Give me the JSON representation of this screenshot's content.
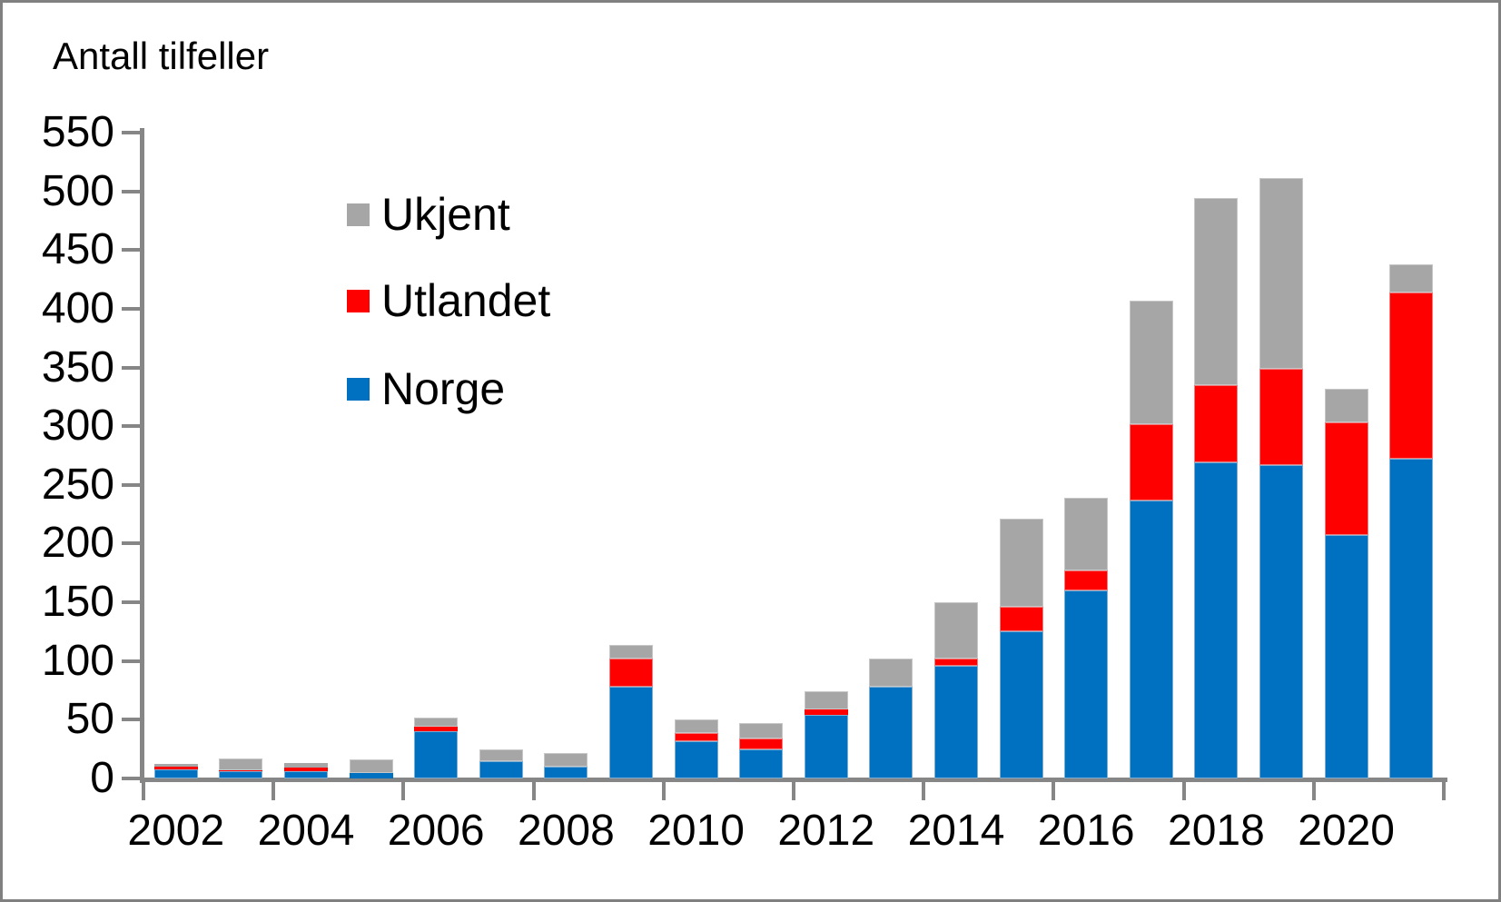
{
  "window": {
    "background": "#ffffff",
    "frame_border_color": "#808080"
  },
  "title": "Antall tilfeller",
  "legend": {
    "position": "upper-left-inside",
    "items": [
      {
        "label": "Ukjent",
        "color": "#a6a6a6"
      },
      {
        "label": "Utlandet",
        "color": "#ff0000"
      },
      {
        "label": "Norge",
        "color": "#0070c0"
      }
    ]
  },
  "axes": {
    "line_color": "#868686",
    "text_color": "#000000",
    "y_tick_labels": [
      "0",
      "50",
      "100",
      "150",
      "200",
      "250",
      "300",
      "350",
      "400",
      "450",
      "500",
      "550"
    ],
    "x_tick_labels": [
      "2002",
      "2004",
      "2006",
      "2008",
      "2010",
      "2012",
      "2014",
      "2016",
      "2018",
      "2020"
    ]
  },
  "chart_data": {
    "type": "bar",
    "stacked": true,
    "title": "Antall tilfeller",
    "xlabel": "",
    "ylabel": "Antall tilfeller",
    "ylim": [
      0,
      550
    ],
    "ytick_step": 50,
    "xtick_label_interval": 2,
    "grid": false,
    "legend_position": "upper-left-inside",
    "categories": [
      "2002",
      "2003",
      "2004",
      "2005",
      "2006",
      "2007",
      "2008",
      "2009",
      "2010",
      "2011",
      "2012",
      "2013",
      "2014",
      "2015",
      "2016",
      "2017",
      "2018",
      "2019",
      "2020",
      "2021"
    ],
    "series": [
      {
        "name": "Norge",
        "color": "#0070c0",
        "values": [
          8,
          6,
          6,
          5,
          40,
          15,
          10,
          78,
          32,
          25,
          54,
          78,
          96,
          125,
          160,
          237,
          269,
          267,
          207,
          272
        ]
      },
      {
        "name": "Utlandet",
        "color": "#ff0000",
        "values": [
          2,
          1,
          3,
          0,
          4,
          0,
          0,
          24,
          7,
          9,
          5,
          0,
          6,
          21,
          17,
          65,
          66,
          82,
          96,
          142
        ]
      },
      {
        "name": "Ukjent",
        "color": "#a6a6a6",
        "values": [
          2,
          10,
          4,
          11,
          8,
          10,
          12,
          12,
          11,
          13,
          15,
          24,
          48,
          75,
          62,
          105,
          159,
          162,
          29,
          24
        ]
      }
    ],
    "stack_order": "first-series-at-bottom",
    "totals": [
      12,
      17,
      13,
      16,
      52,
      25,
      22,
      114,
      50,
      47,
      74,
      102,
      150,
      221,
      239,
      407,
      494,
      511,
      332,
      438
    ]
  }
}
